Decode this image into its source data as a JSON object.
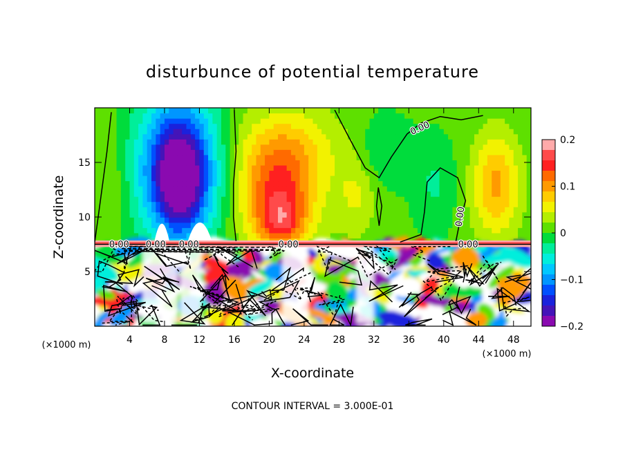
{
  "chart_data": {
    "type": "heatmap",
    "title": "disturbunce of potential temperature",
    "xlabel": "X-coordinate",
    "ylabel": "Z-coordinate",
    "x_unit": "(×1000 m)",
    "x_unit_right": "(×1000 m)",
    "xlim": [
      0,
      50
    ],
    "ylim": [
      0,
      20
    ],
    "x_ticks": [
      4,
      8,
      12,
      16,
      20,
      24,
      28,
      32,
      36,
      40,
      44,
      48
    ],
    "y_ticks": [
      5,
      10,
      15
    ],
    "colorbar": {
      "range": [
        -0.2,
        0.2
      ],
      "ticks": [
        0.2,
        0.1,
        0,
        -0.1,
        -0.2
      ],
      "tick_labels": [
        "0.2",
        "0.1",
        "0",
        "−0.1",
        "−0.2"
      ],
      "colors": [
        "#ffaaaa",
        "#ff4a4a",
        "#ff2020",
        "#ff6a00",
        "#ff9a00",
        "#ffcc00",
        "#f2f200",
        "#b4ee00",
        "#5ee000",
        "#00dc3c",
        "#00ee9a",
        "#00eedc",
        "#00c8ff",
        "#0096ff",
        "#0050ff",
        "#1a22dc",
        "#4414b8",
        "#8a0ab0"
      ]
    },
    "contour_labels": [
      "0.00",
      "0.00",
      "0.00",
      "0.00",
      "0.00",
      "0.00",
      "0.00"
    ],
    "footer": "CONTOUR INTERVAL = 3.000E-01",
    "blobs": [
      {
        "x": 9.6,
        "z": 14.5,
        "rx": 6.0,
        "rz": 8.5,
        "v": -0.17
      },
      {
        "x": 9.8,
        "z": 13.2,
        "rx": 3.2,
        "rz": 5.5,
        "v": -0.1
      },
      {
        "x": 21.0,
        "z": 11.5,
        "rx": 5.5,
        "rz": 6.0,
        "v": 0.13
      },
      {
        "x": 21.5,
        "z": 9.5,
        "rx": 3.0,
        "rz": 2.5,
        "v": 0.06
      },
      {
        "x": 22.0,
        "z": 16.5,
        "rx": 8.0,
        "rz": 5.0,
        "v": 0.06
      },
      {
        "x": 46.0,
        "z": 13.0,
        "rx": 3.5,
        "rz": 6.0,
        "v": 0.09
      },
      {
        "x": 33.0,
        "z": 16.0,
        "rx": 4.0,
        "rz": 4.0,
        "v": -0.03
      },
      {
        "x": 39.0,
        "z": 13.0,
        "rx": 3.0,
        "rz": 5.0,
        "v": -0.03
      },
      {
        "x": 30.0,
        "z": 12.0,
        "rx": 3.0,
        "rz": 5.0,
        "v": 0.04
      },
      {
        "x": 2.0,
        "z": 13.0,
        "rx": 2.5,
        "rz": 7.0,
        "v": 0.02
      }
    ]
  }
}
